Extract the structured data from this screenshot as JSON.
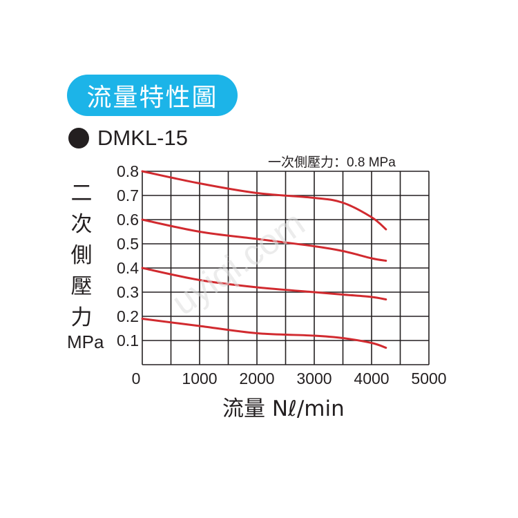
{
  "header": {
    "title": "流量特性圖",
    "model": "DMKL-15"
  },
  "chart_data": {
    "type": "line",
    "title": "流量特性圖",
    "subtitle": "DMKL-15",
    "note": "一次側壓力：0.8 MPa",
    "xlabel": "流量 Nℓ/min",
    "ylabel": "二次側壓力",
    "ylabel_chars": [
      "二",
      "次",
      "側",
      "壓",
      "力"
    ],
    "ylabel_unit": "MPa",
    "xlim": [
      0,
      5000
    ],
    "ylim": [
      0,
      0.8
    ],
    "x_ticks": [
      "0",
      "1000",
      "2000",
      "3000",
      "4000",
      "5000"
    ],
    "y_ticks": [
      "0.1",
      "0.2",
      "0.3",
      "0.4",
      "0.5",
      "0.6",
      "0.7",
      "0.8"
    ],
    "grid": true,
    "line_color": "#d12a2f",
    "series": [
      {
        "x": [
          0,
          1000,
          2000,
          3000,
          3500,
          4000,
          4250
        ],
        "y": [
          0.8,
          0.75,
          0.71,
          0.69,
          0.67,
          0.61,
          0.56
        ]
      },
      {
        "x": [
          0,
          1000,
          2000,
          3000,
          3500,
          4000,
          4250
        ],
        "y": [
          0.6,
          0.55,
          0.52,
          0.49,
          0.47,
          0.44,
          0.43
        ]
      },
      {
        "x": [
          0,
          1000,
          2000,
          3000,
          3500,
          4000,
          4250
        ],
        "y": [
          0.4,
          0.35,
          0.32,
          0.3,
          0.29,
          0.28,
          0.27
        ]
      },
      {
        "x": [
          0,
          1000,
          2000,
          3000,
          3500,
          4000,
          4250
        ],
        "y": [
          0.19,
          0.16,
          0.13,
          0.12,
          0.11,
          0.09,
          0.07
        ]
      }
    ]
  },
  "watermark": "uyiqi.com",
  "colors": {
    "accent": "#1cb4e8",
    "curve": "#d12a2f",
    "grid": "#231f20"
  }
}
